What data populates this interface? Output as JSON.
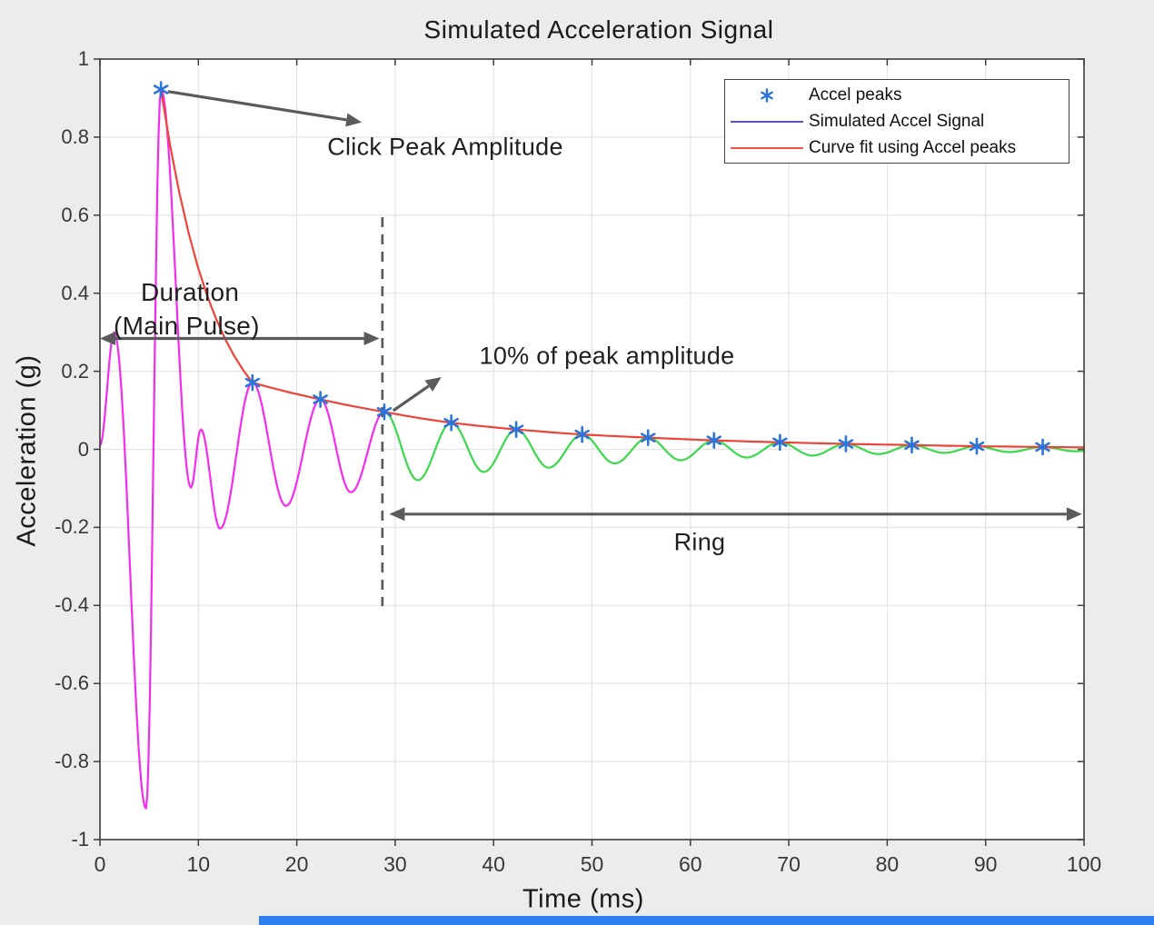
{
  "ui": {
    "bottom_bar": {
      "color": "#2E7FEF"
    }
  },
  "colors": {
    "background": "#ECECEC",
    "plot_background": "#FFFFFF",
    "grid": "#E4E4E4",
    "axis": "#3C3C3C",
    "tick_label": "#383838",
    "annotation": "#5B5B5B",
    "annotation_text": "#1F1F1F",
    "threshold": "#5A5A5A",
    "bottom_bar": "#2E7FEF"
  },
  "chart_data": {
    "type": "line",
    "title": "Simulated Acceleration Signal",
    "xlabel": "Time (ms)",
    "ylabel": "Acceleration (g)",
    "xlim": [
      0,
      100
    ],
    "ylim": [
      -1,
      1
    ],
    "grid": true,
    "xticks": {
      "values": [
        0,
        10,
        20,
        30,
        40,
        50,
        60,
        70,
        80,
        90,
        100
      ],
      "labels": [
        "0",
        "10",
        "20",
        "30",
        "40",
        "50",
        "60",
        "70",
        "80",
        "90",
        "100"
      ]
    },
    "yticks": {
      "values": [
        1,
        0.8,
        0.6,
        0.4,
        0.2,
        0,
        -0.2,
        -0.4,
        -0.6,
        -0.8,
        -1
      ],
      "labels": [
        "1",
        "0.8",
        "0.6",
        "0.4",
        "0.2",
        "0",
        "-0.2",
        "-0.4",
        "-0.6",
        "-0.8",
        "-1"
      ]
    },
    "legend": {
      "position": "top-right",
      "entries": [
        {
          "label": "Accel peaks",
          "marker": "asterisk",
          "color": "#2B74D9"
        },
        {
          "label": "Simulated Accel Signal",
          "marker": "line",
          "color": "#554FE0"
        },
        {
          "label": "Curve fit using Accel peaks",
          "marker": "line",
          "color": "#F2544D"
        }
      ]
    },
    "series": [
      {
        "id": "main-pulse-curve",
        "name": "Simulated Accel Signal (main pulse, 0-29 ms)",
        "color": "#F52CEF",
        "render": "damped",
        "extrema": [
          [
            0,
            0.01
          ],
          [
            1.45,
            0.3
          ],
          [
            4.68,
            -0.92
          ],
          [
            6.2,
            0.922
          ],
          [
            9.25,
            -0.098
          ],
          [
            10.25,
            0.051
          ],
          [
            12.2,
            -0.203
          ],
          [
            15.5,
            0.171
          ],
          [
            18.9,
            -0.145
          ],
          [
            22.4,
            0.128
          ],
          [
            25.5,
            -0.11
          ],
          [
            28.9,
            0.096
          ]
        ]
      },
      {
        "id": "ring-curve",
        "name": "Simulated Accel Signal (ring, 29-100 ms)",
        "color": "#39D94B",
        "render": "damped",
        "extrema": [
          [
            28.9,
            0.096
          ],
          [
            32.3,
            -0.079
          ],
          [
            35.7,
            0.068
          ],
          [
            39.0,
            -0.058
          ],
          [
            42.3,
            0.051
          ],
          [
            45.6,
            -0.047
          ],
          [
            49.0,
            0.038
          ],
          [
            52.3,
            -0.036
          ],
          [
            55.7,
            0.03
          ],
          [
            59.0,
            -0.028
          ],
          [
            62.4,
            0.023
          ],
          [
            65.7,
            -0.021
          ],
          [
            69.1,
            0.018
          ],
          [
            72.4,
            -0.016
          ],
          [
            75.8,
            0.014
          ],
          [
            79.1,
            -0.012
          ],
          [
            82.5,
            0.011
          ],
          [
            85.8,
            -0.009
          ],
          [
            89.1,
            0.008
          ],
          [
            92.4,
            -0.007
          ],
          [
            95.8,
            0.006
          ],
          [
            99.1,
            -0.005
          ],
          [
            100,
            -0.004
          ]
        ]
      },
      {
        "id": "fit-curve",
        "name": "Curve fit using Accel peaks",
        "color": "#EE4338",
        "render": "exp",
        "points": [
          [
            6.2,
            0.922
          ],
          [
            15.5,
            0.171
          ],
          [
            22.4,
            0.128
          ],
          [
            28.9,
            0.096
          ],
          [
            35.7,
            0.068
          ],
          [
            42.3,
            0.051
          ],
          [
            49.0,
            0.038
          ],
          [
            55.7,
            0.03
          ],
          [
            62.4,
            0.023
          ],
          [
            69.1,
            0.018
          ],
          [
            75.8,
            0.014
          ],
          [
            82.5,
            0.011
          ],
          [
            89.1,
            0.008
          ],
          [
            95.8,
            0.006
          ],
          [
            100,
            0.005
          ]
        ]
      },
      {
        "id": "accel-peak-markers",
        "name": "Accel peaks",
        "color": "#2B74D9",
        "render": "markers",
        "points": [
          [
            6.2,
            0.922
          ],
          [
            15.5,
            0.171
          ],
          [
            22.4,
            0.128
          ],
          [
            28.9,
            0.096
          ],
          [
            35.7,
            0.068
          ],
          [
            42.3,
            0.051
          ],
          [
            49.0,
            0.038
          ],
          [
            55.7,
            0.03
          ],
          [
            62.4,
            0.023
          ],
          [
            69.1,
            0.018
          ],
          [
            75.8,
            0.014
          ],
          [
            82.5,
            0.011
          ],
          [
            89.1,
            0.008
          ],
          [
            95.8,
            0.006
          ]
        ]
      }
    ],
    "threshold_line": {
      "t": 28.7,
      "a_from": 0.595,
      "a_to": -0.402,
      "style": "dashed"
    },
    "annotations": {
      "click_peak": {
        "text": "Click Peak Amplitude",
        "arrow": {
          "from_t": 6.9,
          "from_a": 0.917,
          "to_t": 26.6,
          "to_a": 0.838,
          "head": "end"
        }
      },
      "duration": {
        "line1": "Duration",
        "line2": "(Main Pulse)",
        "arrow": {
          "from_t": 0,
          "from_a": 0.284,
          "to_t": 28.4,
          "to_a": 0.284,
          "head": "both"
        }
      },
      "ten_percent": {
        "text": "10% of peak amplitude",
        "arrow": {
          "from_t": 29.8,
          "from_a": 0.099,
          "to_t": 34.7,
          "to_a": 0.185,
          "head": "end"
        }
      },
      "ring": {
        "text": "Ring",
        "arrow": {
          "from_t": 29.4,
          "from_a": -0.166,
          "to_t": 99.8,
          "to_a": -0.166,
          "head": "both"
        }
      }
    }
  }
}
